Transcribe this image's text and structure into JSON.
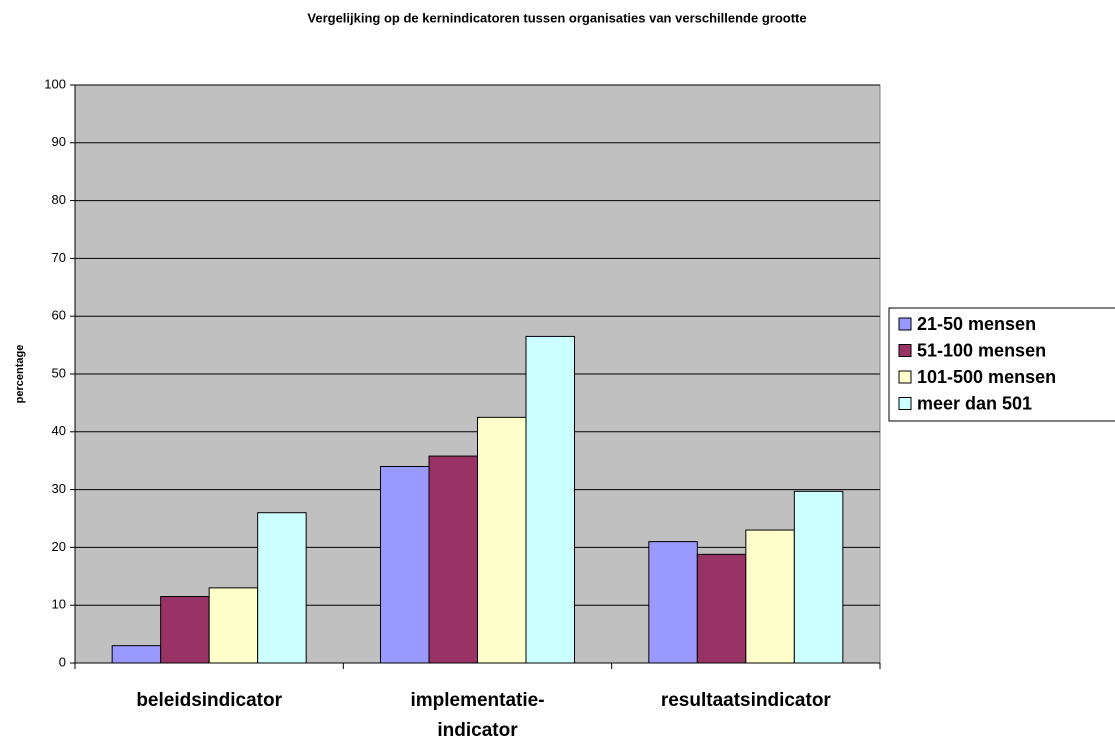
{
  "chart_data": {
    "type": "bar",
    "title": "Vergelijking op de kernindicatoren tussen organisaties van verschillende grootte",
    "ylabel": "percentage",
    "categories": [
      "beleidsindicator",
      "implementatie-indicator",
      "resultaatsindicator"
    ],
    "series": [
      {
        "name": "21-50 mensen",
        "color": "#9999ff",
        "values": [
          3,
          34,
          21
        ]
      },
      {
        "name": "51-100 mensen",
        "color": "#993366",
        "values": [
          11.5,
          35.8,
          18.8
        ]
      },
      {
        "name": "101-500 mensen",
        "color": "#ffffcc",
        "values": [
          13,
          42.5,
          23
        ]
      },
      {
        "name": "meer dan 501",
        "color": "#ccffff",
        "values": [
          26,
          56.5,
          29.7
        ]
      }
    ],
    "ylim": [
      0,
      100
    ],
    "yticks": [
      0,
      10,
      20,
      30,
      40,
      50,
      60,
      70,
      80,
      90,
      100
    ],
    "grid": true,
    "legend": "right",
    "background": "#c0c0c0"
  }
}
